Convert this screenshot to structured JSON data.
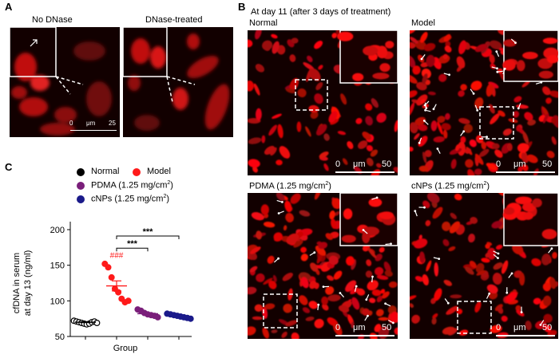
{
  "figure": {
    "panel_a": {
      "letter": "A",
      "titles": [
        "No DNase",
        "DNase-treated"
      ],
      "scalebar": {
        "start": "0",
        "unit": "μm",
        "end": "25"
      }
    },
    "panel_b": {
      "letter": "B",
      "heading": "At day 11 (after 3 days of treatment)",
      "titles": [
        "Normal",
        "Model",
        "PDMA (1.25 mg/cm",
        "cNPs  (1.25 mg/cm"
      ],
      "title_sup": "2",
      "title_close": ")",
      "scalebar": {
        "start": "0",
        "unit": "μm",
        "end": "50"
      }
    },
    "panel_c": {
      "letter": "C",
      "significance": {
        "vs_normal": "###",
        "pdma": "***",
        "cnps": "***"
      }
    }
  },
  "chart_data": {
    "type": "scatter",
    "ylabel_line1": "cfDNA in serum",
    "ylabel_line2": "at day 13 (ng/ml)",
    "xlabel": "Group",
    "ylim": [
      50,
      200
    ],
    "yticks": [
      "50",
      "100",
      "150",
      "200"
    ],
    "legend": [
      {
        "name": "Normal",
        "color": "#000000",
        "dose": ""
      },
      {
        "name": "Model",
        "color": "#ff1a1a",
        "dose": ""
      },
      {
        "name": "PDMA",
        "color": "#7a1f7a",
        "dose": "(1.25 mg/cm"
      },
      {
        "name": "cNPs",
        "color": "#1a1a8a",
        "dose": "(1.25 mg/cm"
      }
    ],
    "dose_sup": "2",
    "dose_close": ")",
    "series": [
      {
        "name": "Normal",
        "color": "#000000",
        "hollow": true,
        "values": [
          72,
          71,
          70,
          69,
          68,
          67,
          68,
          70,
          71,
          69
        ],
        "mean": 70
      },
      {
        "name": "Model",
        "color": "#ff1a1a",
        "hollow": false,
        "values": [
          152,
          147,
          133,
          117,
          112,
          103,
          98,
          100
        ],
        "mean": 121
      },
      {
        "name": "PDMA",
        "color": "#7a1f7a",
        "hollow": false,
        "values": [
          88,
          86,
          83,
          81,
          80,
          79,
          77
        ],
        "mean": 82
      },
      {
        "name": "cNPs",
        "color": "#1a1a8a",
        "hollow": false,
        "values": [
          82,
          81,
          80,
          79,
          78,
          77,
          76,
          75
        ],
        "mean": 79
      }
    ]
  }
}
